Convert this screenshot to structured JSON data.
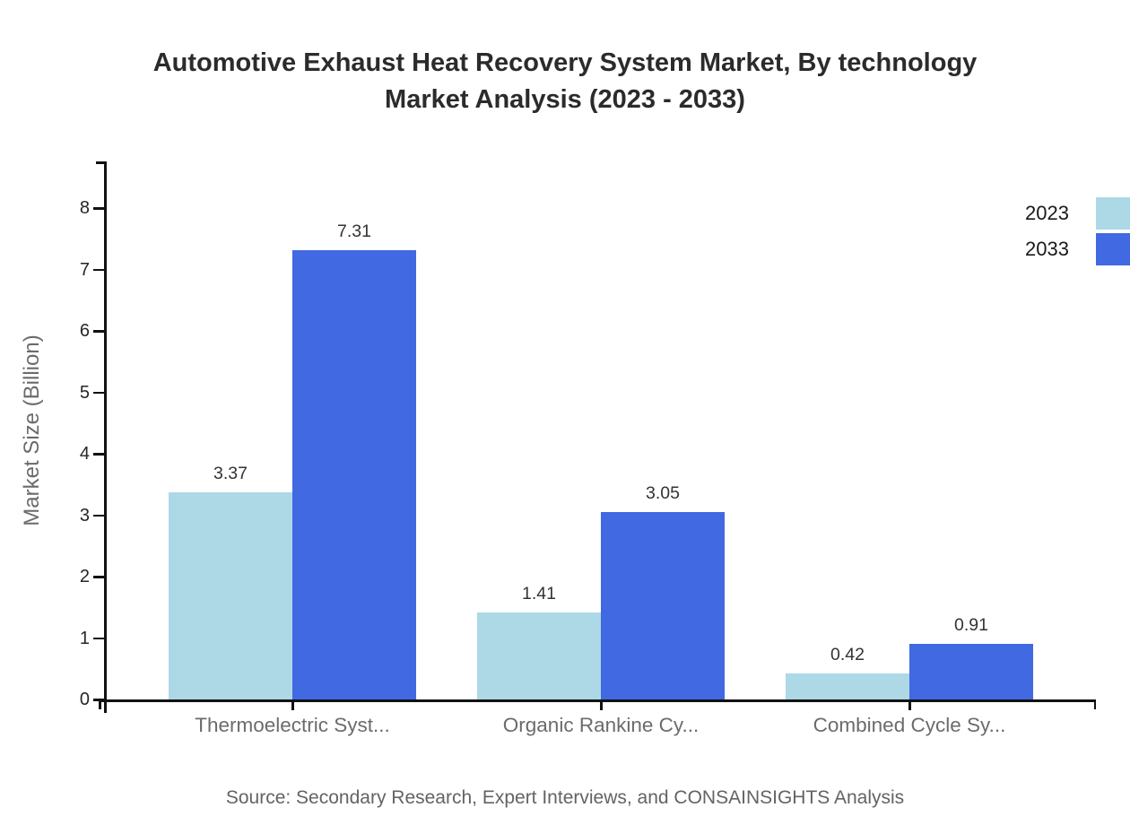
{
  "title": {
    "line1": "Automotive Exhaust Heat Recovery System Market, By technology",
    "line2": "Market Analysis (2023 - 2033)"
  },
  "source": "Source: Secondary Research, Expert Interviews, and CONSAINSIGHTS Analysis",
  "colors": {
    "series_2023": "#add8e6",
    "series_2033": "#4169e1",
    "axis": "#111111",
    "title_text": "#2b2b2b",
    "muted_text": "#6b6b6b",
    "value_text": "#333333"
  },
  "chart_data": {
    "type": "bar",
    "title": "Automotive Exhaust Heat Recovery System Market, By technology Market Analysis (2023 - 2033)",
    "categories": [
      "Thermoelectric Syst...",
      "Organic Rankine Cy...",
      "Combined Cycle Sy..."
    ],
    "series": [
      {
        "name": "2023",
        "color": "#add8e6",
        "values": [
          3.37,
          1.41,
          0.42
        ]
      },
      {
        "name": "2033",
        "color": "#4169e1",
        "values": [
          7.31,
          3.05,
          0.91
        ]
      }
    ],
    "xlabel": "",
    "ylabel": "Market Size (Billion)",
    "ylim": [
      0,
      8.8
    ],
    "yticks": [
      0,
      1,
      2,
      3,
      4,
      5,
      6,
      7,
      8
    ],
    "grid": false,
    "legend_position": "top-right",
    "value_labels": true
  }
}
